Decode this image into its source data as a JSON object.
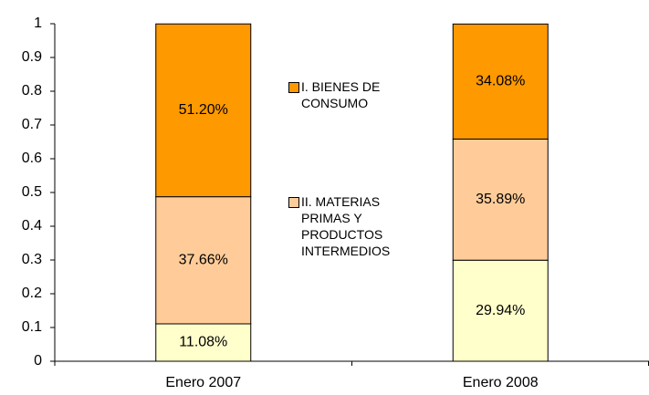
{
  "chart_data": {
    "type": "stacked_bar",
    "categories": [
      "Enero 2007",
      "Enero 2008"
    ],
    "series": [
      {
        "color": "#FFFFCC",
        "values": [
          0.1108,
          0.2994
        ],
        "value_labels": [
          "11.08%",
          "29.94%"
        ]
      },
      {
        "name": "II. MATERIAS PRIMAS Y PRODUCTOS INTERMEDIOS",
        "color": "#FFCC99",
        "values": [
          0.3766,
          0.3589
        ],
        "value_labels": [
          "37.66%",
          "35.89%"
        ]
      },
      {
        "name": "I. BIENES DE CONSUMO",
        "color": "#FF9900",
        "values": [
          0.512,
          0.3408
        ],
        "value_labels": [
          "51.20%",
          "34.08%"
        ]
      }
    ],
    "ylim": [
      0,
      1
    ],
    "yticks": [
      0,
      0.1,
      0.2,
      0.3,
      0.4,
      0.5,
      0.6,
      0.7,
      0.8,
      0.9,
      1
    ],
    "grid": false
  }
}
